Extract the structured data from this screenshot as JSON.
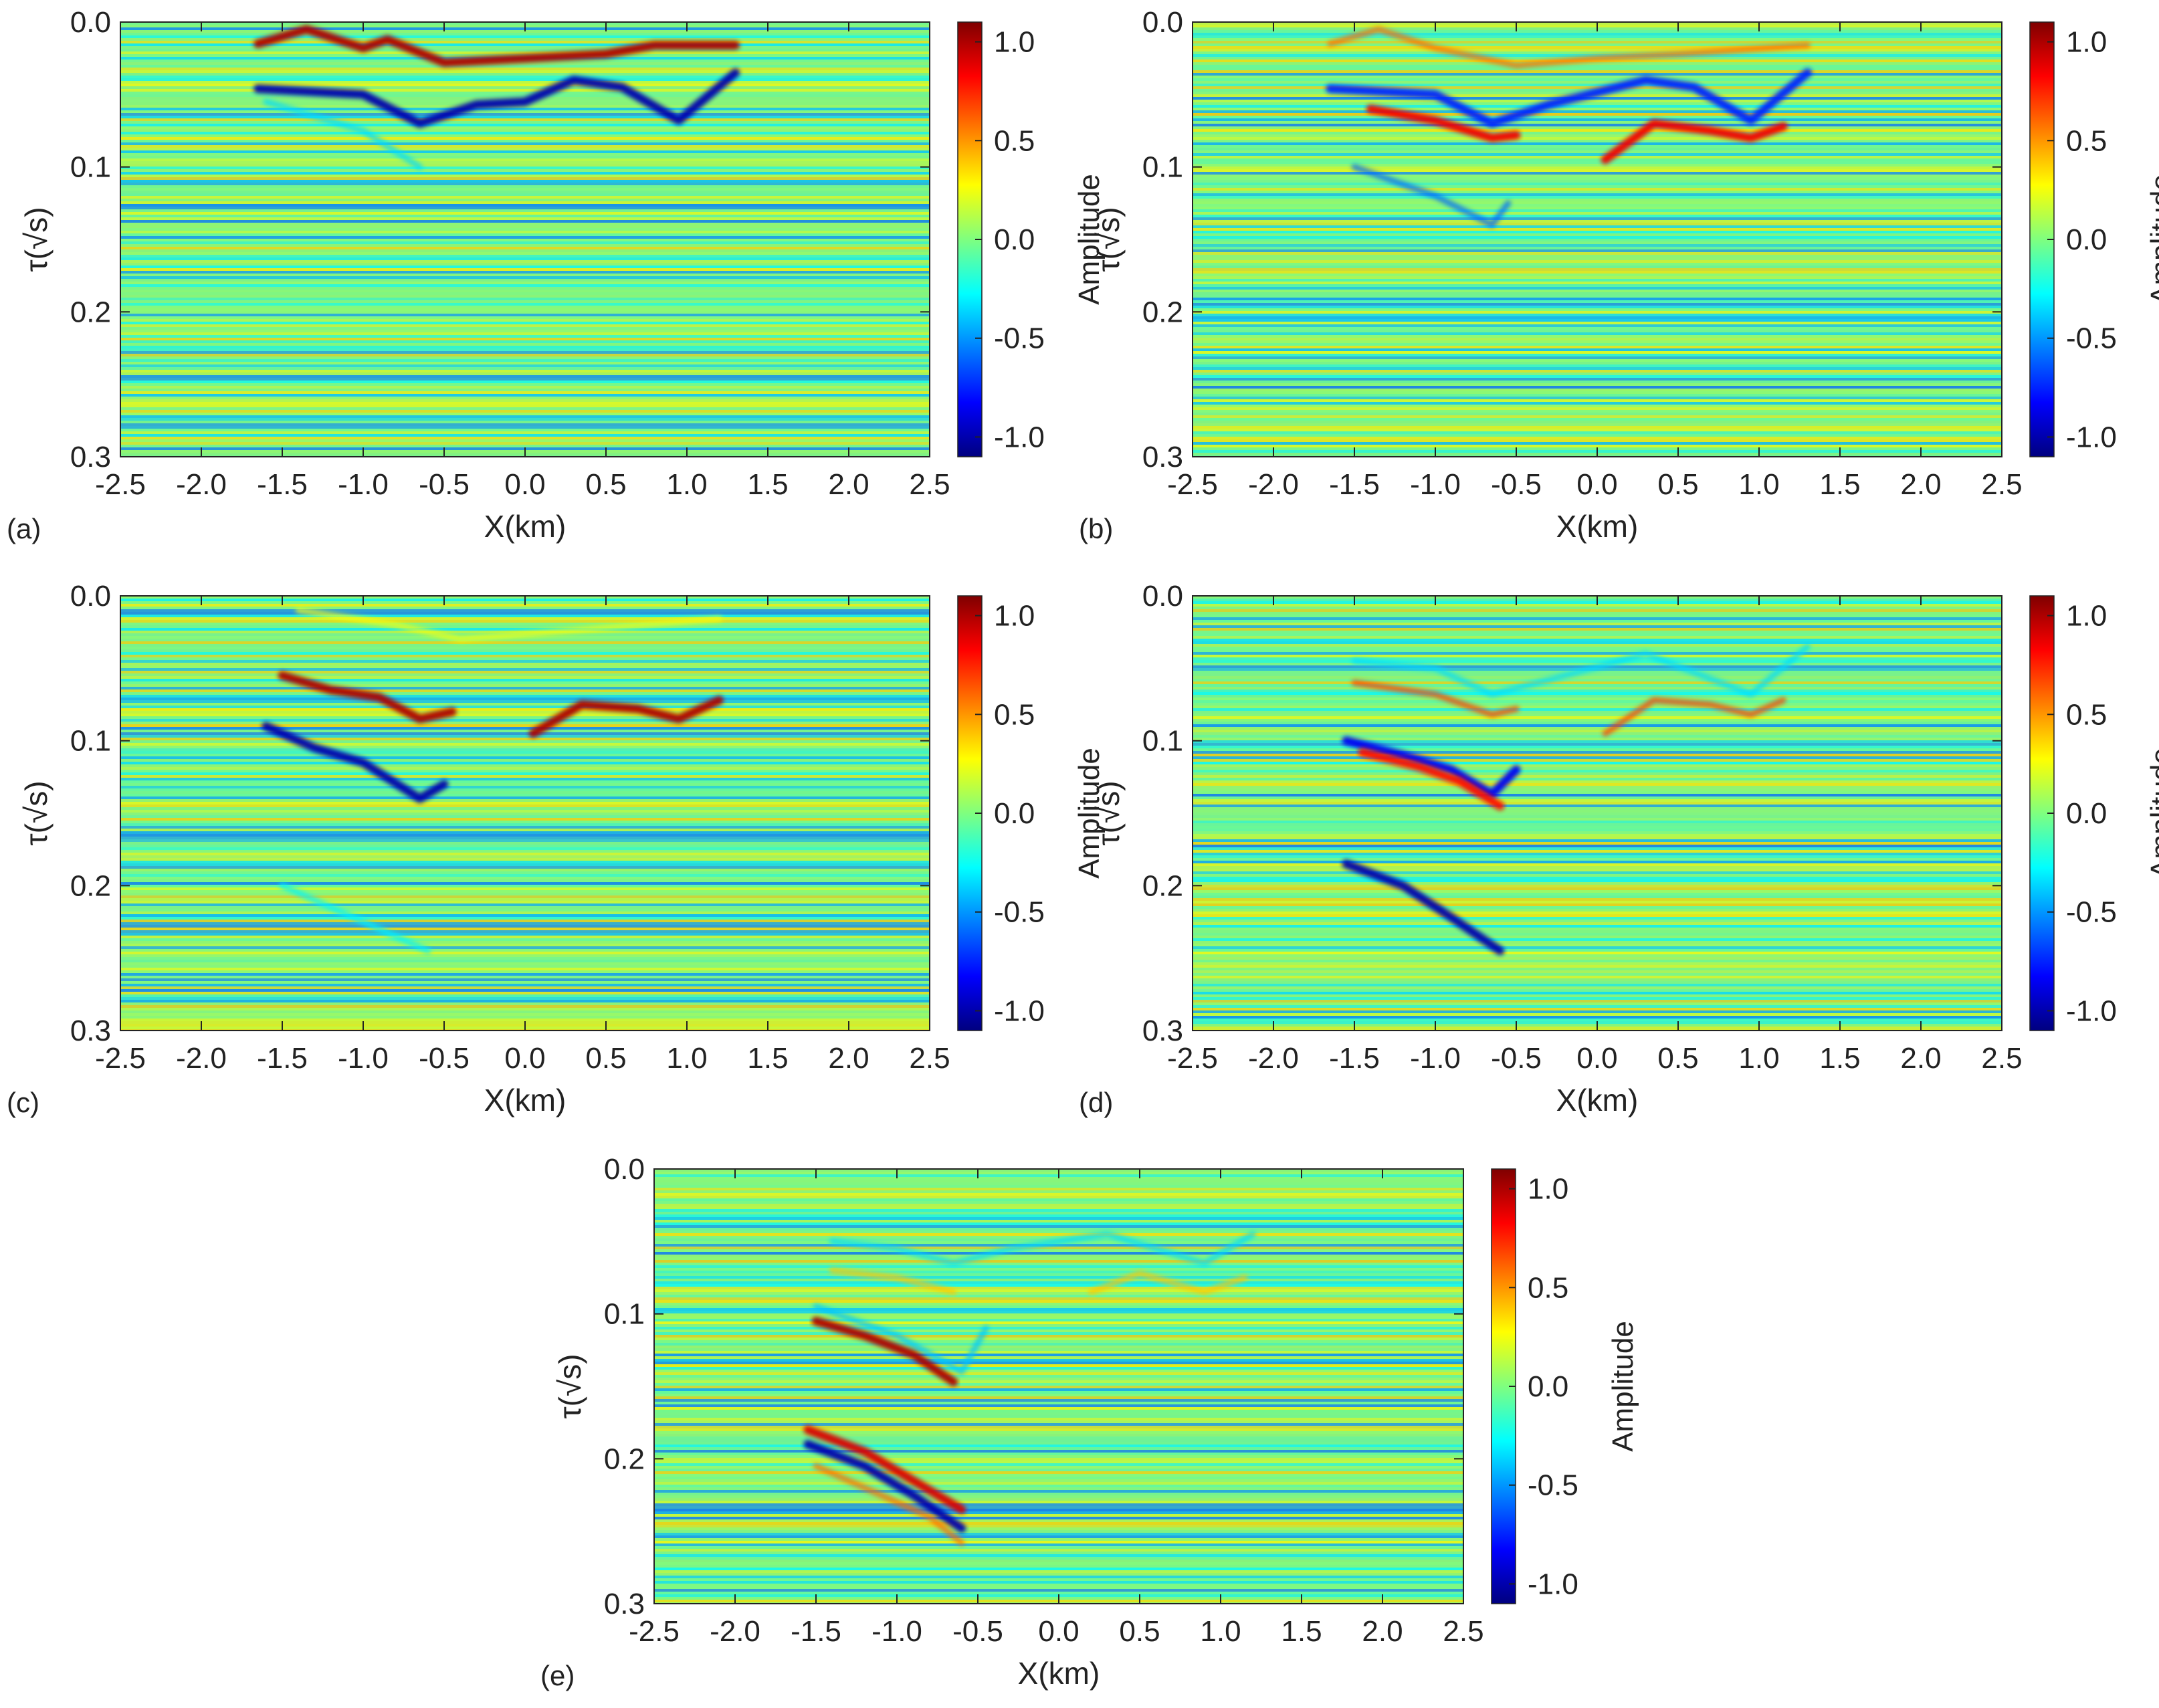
{
  "figure": {
    "colormap": [
      "#00007f",
      "#0000ff",
      "#007fff",
      "#00ffff",
      "#7fff7f",
      "#ffff00",
      "#ff7f00",
      "#ff0000",
      "#7f0000"
    ],
    "background_color": "#7fe28a"
  },
  "chart_data": [
    {
      "type": "heatmap",
      "panel_label": "(a)",
      "xlabel": "X(km)",
      "ylabel": "τ(√s)",
      "xlim": [
        -2.5,
        2.5
      ],
      "ylim": [
        0.3,
        0.0
      ],
      "xticks": [
        "-2.5",
        "-2.0",
        "-1.5",
        "-1.0",
        "-0.5",
        "0.0",
        "0.5",
        "1.0",
        "1.5",
        "2.0",
        "2.5"
      ],
      "yticks": [
        "0.0",
        "0.1",
        "0.2",
        "0.3"
      ],
      "colorbar": {
        "title": "Amplitude",
        "range": [
          -1.1,
          1.1
        ],
        "ticks": [
          "1.0",
          "0.5",
          "0.0",
          "-0.5",
          "-1.0"
        ]
      },
      "events": [
        {
          "amplitude": 1.0,
          "points": [
            [
              -1.65,
              0.015
            ],
            [
              -1.35,
              0.005
            ],
            [
              -1.0,
              0.018
            ],
            [
              -0.85,
              0.012
            ],
            [
              -0.5,
              0.028
            ],
            [
              0.0,
              0.025
            ],
            [
              0.5,
              0.022
            ],
            [
              0.8,
              0.016
            ],
            [
              1.3,
              0.016
            ]
          ]
        },
        {
          "amplitude": -1.0,
          "points": [
            [
              -1.65,
              0.046
            ],
            [
              -1.0,
              0.05
            ],
            [
              -0.65,
              0.07
            ],
            [
              -0.3,
              0.057
            ],
            [
              0.0,
              0.055
            ],
            [
              0.3,
              0.04
            ],
            [
              0.6,
              0.045
            ],
            [
              0.95,
              0.068
            ],
            [
              1.3,
              0.035
            ]
          ]
        },
        {
          "amplitude": -0.35,
          "points": [
            [
              -1.6,
              0.055
            ],
            [
              -1.0,
              0.075
            ],
            [
              -0.65,
              0.1
            ]
          ]
        }
      ]
    },
    {
      "type": "heatmap",
      "panel_label": "(b)",
      "xlabel": "X(km)",
      "ylabel": "τ(√s)",
      "xlim": [
        -2.5,
        2.5
      ],
      "ylim": [
        0.3,
        0.0
      ],
      "xticks": [
        "-2.5",
        "-2.0",
        "-1.5",
        "-1.0",
        "-0.5",
        "0.0",
        "0.5",
        "1.0",
        "1.5",
        "2.0",
        "2.5"
      ],
      "yticks": [
        "0.0",
        "0.1",
        "0.2",
        "0.3"
      ],
      "colorbar": {
        "title": "Amplitude",
        "range": [
          -1.1,
          1.1
        ],
        "ticks": [
          "1.0",
          "0.5",
          "0.0",
          "-0.5",
          "-1.0"
        ]
      },
      "events": [
        {
          "amplitude": 0.6,
          "points": [
            [
              -1.65,
              0.015
            ],
            [
              -1.35,
              0.005
            ],
            [
              -1.0,
              0.018
            ],
            [
              -0.5,
              0.03
            ],
            [
              0.0,
              0.025
            ],
            [
              0.5,
              0.022
            ],
            [
              1.3,
              0.016
            ]
          ]
        },
        {
          "amplitude": -0.75,
          "points": [
            [
              -1.65,
              0.046
            ],
            [
              -1.0,
              0.05
            ],
            [
              -0.65,
              0.07
            ],
            [
              -0.3,
              0.057
            ],
            [
              0.3,
              0.04
            ],
            [
              0.6,
              0.045
            ],
            [
              0.95,
              0.068
            ],
            [
              1.3,
              0.035
            ]
          ]
        },
        {
          "amplitude": 0.85,
          "points": [
            [
              -1.4,
              0.06
            ],
            [
              -1.0,
              0.068
            ],
            [
              -0.65,
              0.08
            ],
            [
              -0.5,
              0.078
            ]
          ]
        },
        {
          "amplitude": 0.85,
          "points": [
            [
              0.05,
              0.095
            ],
            [
              0.35,
              0.07
            ],
            [
              0.7,
              0.075
            ],
            [
              0.95,
              0.08
            ],
            [
              1.15,
              0.072
            ]
          ]
        },
        {
          "amplitude": -0.6,
          "points": [
            [
              -1.5,
              0.1
            ],
            [
              -1.0,
              0.12
            ],
            [
              -0.65,
              0.14
            ],
            [
              -0.55,
              0.125
            ]
          ]
        }
      ]
    },
    {
      "type": "heatmap",
      "panel_label": "(c)",
      "xlabel": "X(km)",
      "ylabel": "τ(√s)",
      "xlim": [
        -2.5,
        2.5
      ],
      "ylim": [
        0.3,
        0.0
      ],
      "xticks": [
        "-2.5",
        "-2.0",
        "-1.5",
        "-1.0",
        "-0.5",
        "0.0",
        "0.5",
        "1.0",
        "1.5",
        "2.0",
        "2.5"
      ],
      "yticks": [
        "0.0",
        "0.1",
        "0.2",
        "0.3"
      ],
      "colorbar": {
        "title": "Amplitude",
        "range": [
          -1.1,
          1.1
        ],
        "ticks": [
          "1.0",
          "0.5",
          "0.0",
          "-0.5",
          "-1.0"
        ]
      },
      "events": [
        {
          "amplitude": 0.25,
          "points": [
            [
              -1.4,
              0.01
            ],
            [
              -0.8,
              0.02
            ],
            [
              -0.4,
              0.03
            ],
            [
              0.5,
              0.022
            ],
            [
              1.2,
              0.016
            ]
          ]
        },
        {
          "amplitude": 1.0,
          "points": [
            [
              -1.5,
              0.055
            ],
            [
              -1.2,
              0.065
            ],
            [
              -0.9,
              0.07
            ],
            [
              -0.65,
              0.085
            ],
            [
              -0.45,
              0.08
            ]
          ]
        },
        {
          "amplitude": 1.0,
          "points": [
            [
              0.05,
              0.095
            ],
            [
              0.35,
              0.075
            ],
            [
              0.7,
              0.078
            ],
            [
              0.95,
              0.085
            ],
            [
              1.2,
              0.072
            ]
          ]
        },
        {
          "amplitude": -1.0,
          "points": [
            [
              -1.6,
              0.09
            ],
            [
              -1.3,
              0.105
            ],
            [
              -1.0,
              0.115
            ],
            [
              -0.65,
              0.14
            ],
            [
              -0.5,
              0.13
            ]
          ]
        },
        {
          "amplitude": -0.3,
          "points": [
            [
              -1.5,
              0.2
            ],
            [
              -1.0,
              0.225
            ],
            [
              -0.6,
              0.245
            ]
          ]
        }
      ]
    },
    {
      "type": "heatmap",
      "panel_label": "(d)",
      "xlabel": "X(km)",
      "ylabel": "τ(√s)",
      "xlim": [
        -2.5,
        2.5
      ],
      "ylim": [
        0.3,
        0.0
      ],
      "xticks": [
        "-2.5",
        "-2.0",
        "-1.5",
        "-1.0",
        "-0.5",
        "0.0",
        "0.5",
        "1.0",
        "1.5",
        "2.0",
        "2.5"
      ],
      "yticks": [
        "0.0",
        "0.1",
        "0.2",
        "0.3"
      ],
      "colorbar": {
        "title": "Amplitude",
        "range": [
          -1.1,
          1.1
        ],
        "ticks": [
          "1.0",
          "0.5",
          "0.0",
          "-0.5",
          "-1.0"
        ]
      },
      "events": [
        {
          "amplitude": -0.35,
          "points": [
            [
              -1.5,
              0.045
            ],
            [
              -1.0,
              0.05
            ],
            [
              -0.65,
              0.068
            ],
            [
              -0.3,
              0.058
            ],
            [
              0.3,
              0.04
            ],
            [
              0.95,
              0.068
            ],
            [
              1.3,
              0.035
            ]
          ]
        },
        {
          "amplitude": 0.7,
          "points": [
            [
              -1.5,
              0.06
            ],
            [
              -1.0,
              0.068
            ],
            [
              -0.65,
              0.082
            ],
            [
              -0.5,
              0.078
            ]
          ]
        },
        {
          "amplitude": 0.7,
          "points": [
            [
              0.05,
              0.095
            ],
            [
              0.35,
              0.072
            ],
            [
              0.7,
              0.075
            ],
            [
              0.95,
              0.082
            ],
            [
              1.15,
              0.072
            ]
          ]
        },
        {
          "amplitude": -0.85,
          "points": [
            [
              -1.55,
              0.1
            ],
            [
              -1.2,
              0.11
            ],
            [
              -0.9,
              0.12
            ],
            [
              -0.65,
              0.137
            ],
            [
              -0.5,
              0.12
            ]
          ]
        },
        {
          "amplitude": 0.8,
          "points": [
            [
              -1.45,
              0.108
            ],
            [
              -1.1,
              0.118
            ],
            [
              -0.85,
              0.128
            ],
            [
              -0.6,
              0.145
            ]
          ]
        },
        {
          "amplitude": -1.0,
          "points": [
            [
              -1.55,
              0.185
            ],
            [
              -1.2,
              0.2
            ],
            [
              -0.9,
              0.222
            ],
            [
              -0.6,
              0.245
            ]
          ]
        }
      ]
    },
    {
      "type": "heatmap",
      "panel_label": "(e)",
      "xlabel": "X(km)",
      "ylabel": "τ(√s)",
      "xlim": [
        -2.5,
        2.5
      ],
      "ylim": [
        0.3,
        0.0
      ],
      "xticks": [
        "-2.5",
        "-2.0",
        "-1.5",
        "-1.0",
        "-0.5",
        "0.0",
        "0.5",
        "1.0",
        "1.5",
        "2.0",
        "2.5"
      ],
      "yticks": [
        "0.0",
        "0.1",
        "0.2",
        "0.3"
      ],
      "colorbar": {
        "title": "Amplitude",
        "range": [
          -1.1,
          1.1
        ],
        "ticks": [
          "1.0",
          "0.5",
          "0.0",
          "-0.5",
          "-1.0"
        ]
      },
      "events": [
        {
          "amplitude": -0.35,
          "points": [
            [
              -1.4,
              0.05
            ],
            [
              -1.0,
              0.055
            ],
            [
              -0.65,
              0.065
            ],
            [
              -0.3,
              0.055
            ],
            [
              0.3,
              0.045
            ],
            [
              0.9,
              0.065
            ],
            [
              1.2,
              0.045
            ]
          ]
        },
        {
          "amplitude": 0.4,
          "points": [
            [
              -1.4,
              0.07
            ],
            [
              -1.0,
              0.075
            ],
            [
              -0.65,
              0.085
            ]
          ]
        },
        {
          "amplitude": 0.4,
          "points": [
            [
              0.2,
              0.085
            ],
            [
              0.5,
              0.072
            ],
            [
              0.9,
              0.085
            ],
            [
              1.15,
              0.075
            ]
          ]
        },
        {
          "amplitude": -0.4,
          "points": [
            [
              -1.5,
              0.095
            ],
            [
              -1.0,
              0.115
            ],
            [
              -0.6,
              0.14
            ],
            [
              -0.45,
              0.11
            ]
          ]
        },
        {
          "amplitude": 1.0,
          "points": [
            [
              -1.5,
              0.105
            ],
            [
              -1.2,
              0.115
            ],
            [
              -0.9,
              0.128
            ],
            [
              -0.65,
              0.147
            ]
          ]
        },
        {
          "amplitude": 0.9,
          "points": [
            [
              -1.55,
              0.18
            ],
            [
              -1.2,
              0.195
            ],
            [
              -0.9,
              0.215
            ],
            [
              -0.6,
              0.235
            ]
          ]
        },
        {
          "amplitude": -1.0,
          "points": [
            [
              -1.55,
              0.19
            ],
            [
              -1.2,
              0.205
            ],
            [
              -0.9,
              0.225
            ],
            [
              -0.6,
              0.248
            ]
          ]
        },
        {
          "amplitude": 0.6,
          "points": [
            [
              -1.5,
              0.205
            ],
            [
              -1.1,
              0.225
            ],
            [
              -0.8,
              0.24
            ],
            [
              -0.6,
              0.258
            ]
          ]
        }
      ]
    }
  ]
}
